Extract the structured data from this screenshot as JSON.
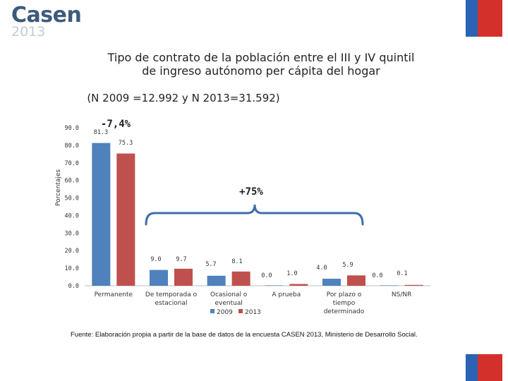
{
  "logo": {
    "name": "Casen",
    "year": "2013"
  },
  "header": {
    "title_line1": "Tipo de contrato de la población entre el III y IV quintil",
    "title_line2": "de ingreso autónomo per cápita del hogar",
    "subtitle": "(N 2009 =12.992 y N 2013=31.592)"
  },
  "colors": {
    "flag_blue": "#2a63b4",
    "flag_red": "#d4302b",
    "series_2009": "#4f81bd",
    "series_2013": "#c0504d",
    "bracket": "#3f6cad"
  },
  "chart_data": {
    "type": "bar",
    "title": "Tipo de contrato de la población entre el III y IV quintil de ingreso autónomo per cápita del hogar",
    "ylabel": "Porcentajes",
    "xlabel": "",
    "ylim": [
      0,
      90
    ],
    "yticks": [
      "0.0",
      "10.0",
      "20.0",
      "30.0",
      "40.0",
      "50.0",
      "60.0",
      "70.0",
      "80.0",
      "90.0"
    ],
    "grid": false,
    "legend_position": "bottom",
    "categories": [
      [
        "Permanente"
      ],
      [
        "De temporada o",
        "estacional"
      ],
      [
        "Ocasional o",
        "eventual"
      ],
      [
        "A prueba"
      ],
      [
        "Por plazo o",
        "tiempo",
        "determinado"
      ],
      [
        "NS/NR"
      ]
    ],
    "series": [
      {
        "name": "2009",
        "values": [
          81.3,
          9.0,
          5.7,
          0.0,
          4.0,
          0.0
        ],
        "labels": [
          "81.3",
          "9.0",
          "5.7",
          "0.0",
          "4.0",
          "0.0"
        ]
      },
      {
        "name": "2013",
        "values": [
          75.3,
          9.7,
          8.1,
          1.0,
          5.9,
          0.1
        ],
        "labels": [
          "75.3",
          "9.7",
          "8.1",
          "1.0",
          "5.9",
          "0.1"
        ]
      }
    ],
    "annotations": [
      "-7,4%",
      "+75%"
    ]
  },
  "footer": {
    "source": "Fuente: Elaboración propia a partir de la base de datos de la encuesta CASEN 2013, Ministerio de Desarrollo Social."
  }
}
